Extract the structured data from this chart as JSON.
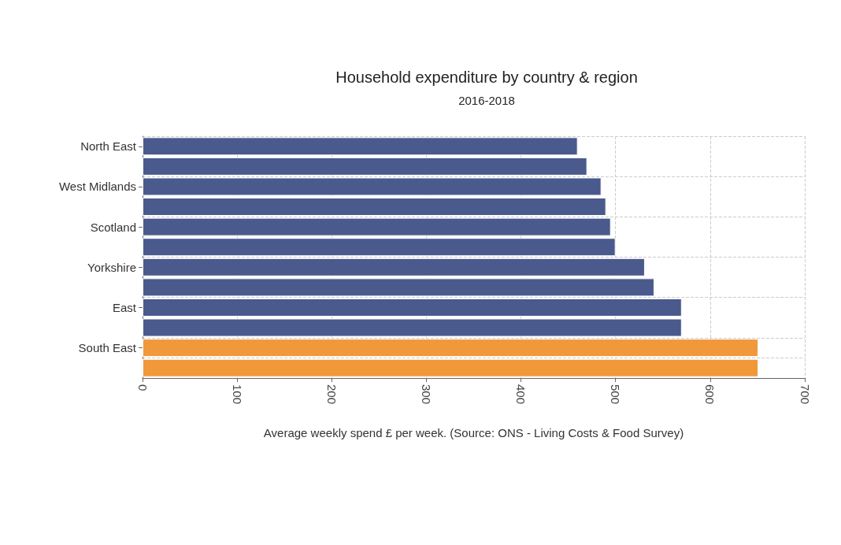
{
  "chart_data": {
    "type": "bar",
    "orientation": "horizontal",
    "title": "Household expenditure by country & region",
    "subtitle": "2016-2018",
    "xlabel": "Average weekly spend £ per week. (Source: ONS - Living Costs & Food Survey)",
    "categories": [
      "North East",
      null,
      "West Midlands",
      null,
      "Scotland",
      null,
      "Yorkshire",
      null,
      "East",
      null,
      "South East",
      null
    ],
    "values": [
      460,
      470,
      485,
      490,
      495,
      500,
      531,
      541,
      570,
      570,
      651,
      651
    ],
    "colors": [
      "#4a5a8c",
      "#4a5a8c",
      "#4a5a8c",
      "#4a5a8c",
      "#4a5a8c",
      "#4a5a8c",
      "#4a5a8c",
      "#4a5a8c",
      "#4a5a8c",
      "#4a5a8c",
      "#f0983a",
      "#f0983a"
    ],
    "xlim": [
      0,
      700
    ],
    "xticks": [
      0,
      100,
      200,
      300,
      400,
      500,
      600,
      700
    ],
    "grid": true
  }
}
